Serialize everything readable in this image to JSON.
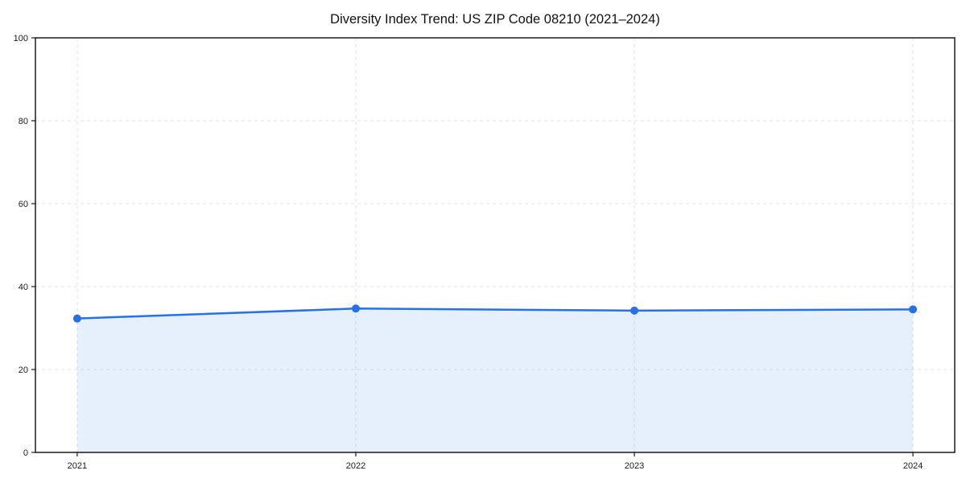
{
  "chart_data": {
    "type": "line",
    "title": "Diversity Index Trend: US ZIP Code 08210 (2021–2024)",
    "categories": [
      "2021",
      "2022",
      "2023",
      "2024"
    ],
    "values": [
      32.3,
      34.7,
      34.2,
      34.5
    ],
    "series_name": "Diversity Index",
    "xlabel": "",
    "ylabel": "",
    "ylim": [
      0,
      100
    ],
    "yticks": [
      0,
      20,
      40,
      60,
      80,
      100
    ],
    "x_margin_fraction": 0.05,
    "grid": true,
    "grid_style": "dashed",
    "legend": "none",
    "area_fill_to_zero": true,
    "markers": true,
    "colors": {
      "line": "#2670e8",
      "marker": "#2670e8",
      "area_fill": "rgba(38,112,232,0.115)",
      "grid": "#e0e0e0",
      "spine": "#1a1a1a",
      "tick_text": "#1a1a1a",
      "title_text": "#111111",
      "background": "#ffffff"
    }
  }
}
